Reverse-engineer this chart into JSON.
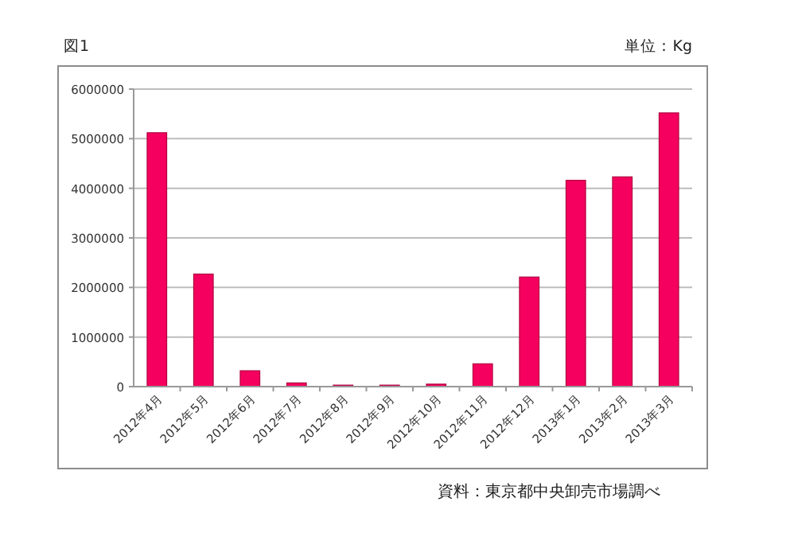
{
  "chart_data": {
    "type": "bar",
    "title": "図1",
    "ylabel": "単位：Kg",
    "annotations": [
      "資料：東京都中央卸売市場調べ"
    ],
    "categories": [
      "2012年4月",
      "2012年5月",
      "2012年6月",
      "2012年7月",
      "2012年8月",
      "2012年9月",
      "2012年10月",
      "2012年11月",
      "2012年12月",
      "2013年1月",
      "2013年2月",
      "2013年3月"
    ],
    "values": [
      5120000,
      2270000,
      320000,
      75000,
      30000,
      30000,
      50000,
      460000,
      2210000,
      4160000,
      4230000,
      5520000
    ],
    "color": "#f5005e",
    "ylim": [
      0,
      6000000
    ],
    "yticks": [
      0,
      1000000,
      2000000,
      3000000,
      4000000,
      5000000,
      6000000
    ],
    "grid": "y"
  }
}
